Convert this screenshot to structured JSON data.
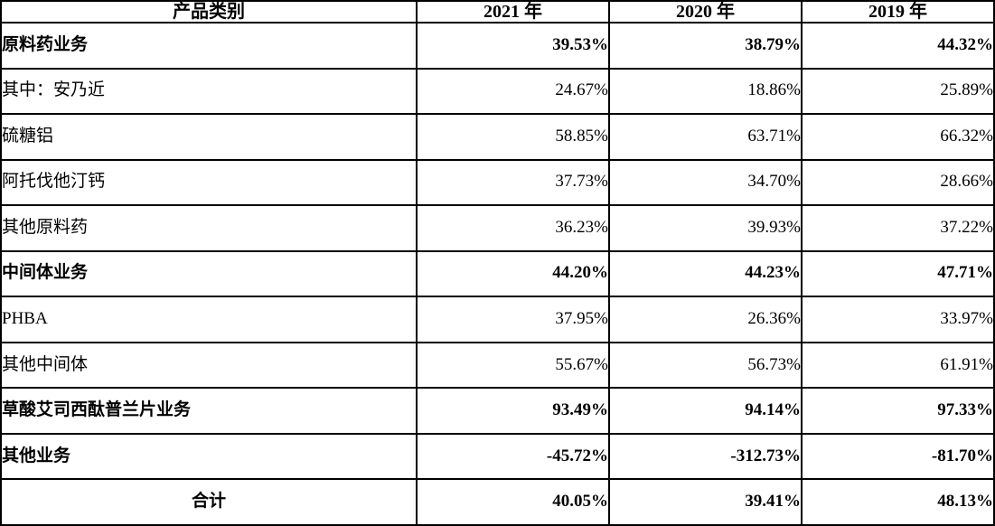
{
  "table": {
    "columns": [
      "产品类别",
      "2021 年",
      "2020 年",
      "2019 年"
    ],
    "rows": [
      {
        "label": "原料药业务",
        "bold": true,
        "values": [
          "39.53%",
          "38.79%",
          "44.32%"
        ]
      },
      {
        "label": "其中：安乃近",
        "bold": false,
        "values": [
          "24.67%",
          "18.86%",
          "25.89%"
        ]
      },
      {
        "label": "硫糖铝",
        "bold": false,
        "values": [
          "58.85%",
          "63.71%",
          "66.32%"
        ]
      },
      {
        "label": "阿托伐他汀钙",
        "bold": false,
        "values": [
          "37.73%",
          "34.70%",
          "28.66%"
        ]
      },
      {
        "label": "其他原料药",
        "bold": false,
        "values": [
          "36.23%",
          "39.93%",
          "37.22%"
        ]
      },
      {
        "label": "中间体业务",
        "bold": true,
        "values": [
          "44.20%",
          "44.23%",
          "47.71%"
        ]
      },
      {
        "label": "PHBA",
        "bold": false,
        "values": [
          "37.95%",
          "26.36%",
          "33.97%"
        ]
      },
      {
        "label": "其他中间体",
        "bold": false,
        "values": [
          "55.67%",
          "56.73%",
          "61.91%"
        ]
      },
      {
        "label": "草酸艾司西酞普兰片业务",
        "bold": true,
        "values": [
          "93.49%",
          "94.14%",
          "97.33%"
        ]
      },
      {
        "label": "其他业务",
        "bold": true,
        "values": [
          "-45.72%",
          "-312.73%",
          "-81.70%"
        ]
      },
      {
        "label": "合计",
        "bold": true,
        "values": [
          "40.05%",
          "39.41%",
          "48.13%"
        ]
      }
    ]
  }
}
